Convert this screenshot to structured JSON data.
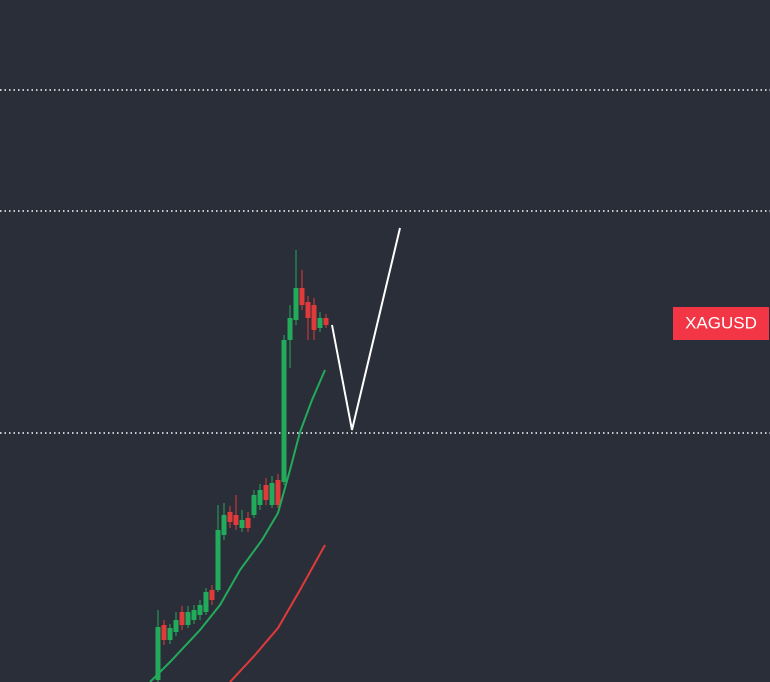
{
  "symbol_label": "XAGUSD"
}
